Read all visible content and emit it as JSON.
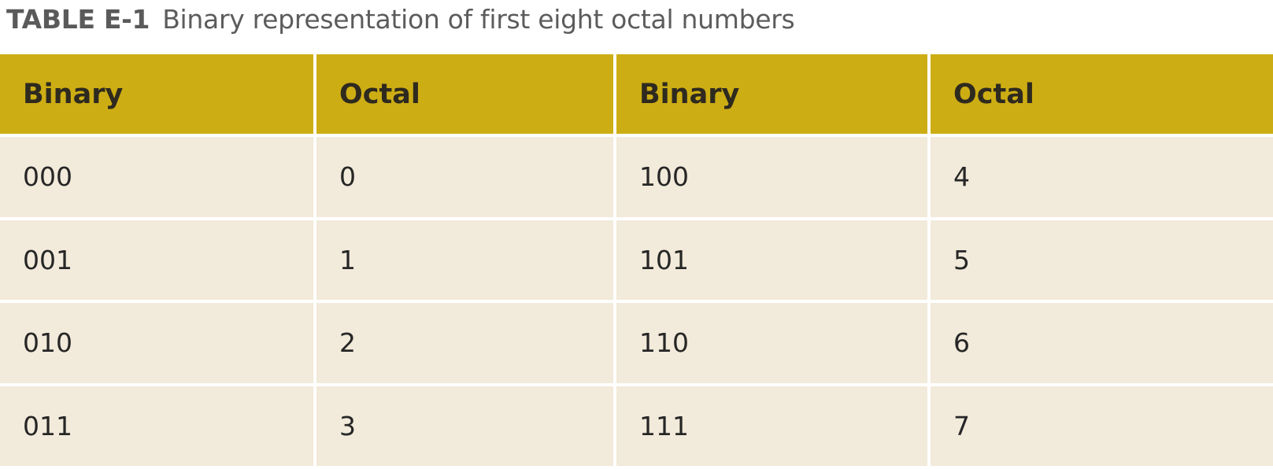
{
  "caption": {
    "label": "TABLE E-1",
    "text": "Binary representation of first eight octal numbers"
  },
  "colors": {
    "header_background": "#cdad14",
    "cell_background": "#f2eada",
    "grid_lines": "#ffffff"
  },
  "table": {
    "headers": [
      "Binary",
      "Octal",
      "Binary",
      "Octal"
    ],
    "rows": [
      [
        "000",
        "0",
        "100",
        "4"
      ],
      [
        "001",
        "1",
        "101",
        "5"
      ],
      [
        "010",
        "2",
        "110",
        "6"
      ],
      [
        "011",
        "3",
        "111",
        "7"
      ]
    ]
  }
}
